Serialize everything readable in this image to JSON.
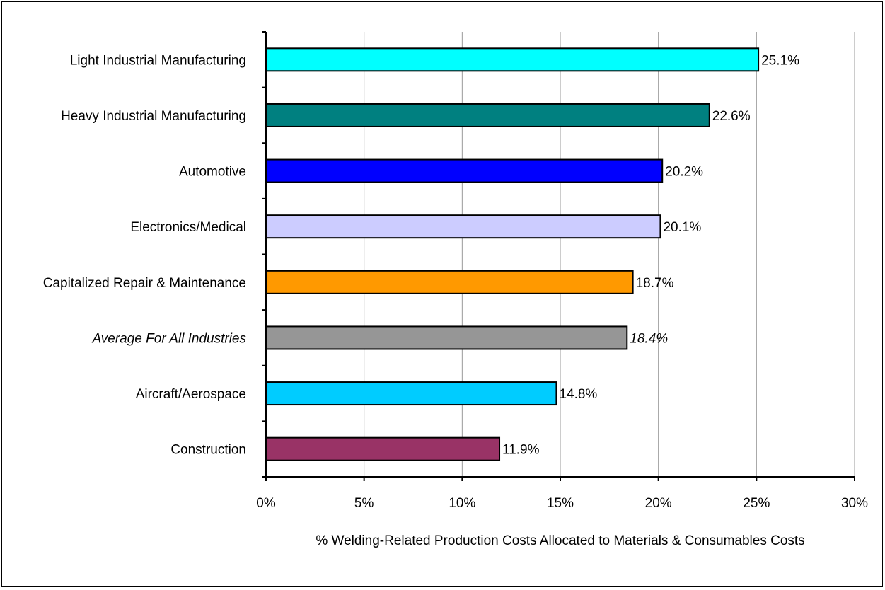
{
  "chart_data": {
    "type": "bar",
    "orientation": "horizontal",
    "categories": [
      "Light Industrial Manufacturing",
      "Heavy Industrial Manufacturing",
      "Automotive",
      "Electronics/Medical",
      "Capitalized Repair & Maintenance",
      "Average For All Industries",
      "Aircraft/Aerospace",
      "Construction"
    ],
    "values": [
      25.1,
      22.6,
      20.2,
      20.1,
      18.7,
      18.4,
      14.8,
      11.9
    ],
    "data_labels": [
      "25.1%",
      "22.6%",
      "20.2%",
      "20.1%",
      "18.7%",
      "18.4%",
      "14.8%",
      "11.9%"
    ],
    "colors": [
      "#00FFFF",
      "#008080",
      "#0000FF",
      "#CCCCFF",
      "#FF9900",
      "#969696",
      "#00CCFF",
      "#993366"
    ],
    "italic_category": "Average For All Industries",
    "xlim": [
      0,
      30
    ],
    "x_ticks": [
      0,
      5,
      10,
      15,
      20,
      25,
      30
    ],
    "x_tick_labels": [
      "0%",
      "5%",
      "10%",
      "15%",
      "20%",
      "25%",
      "30%"
    ],
    "xlabel": "% Welding-Related Production Costs Allocated to Materials & Consumables Costs",
    "ylabel": "",
    "title": "",
    "grid": "vertical",
    "legend": "none"
  }
}
